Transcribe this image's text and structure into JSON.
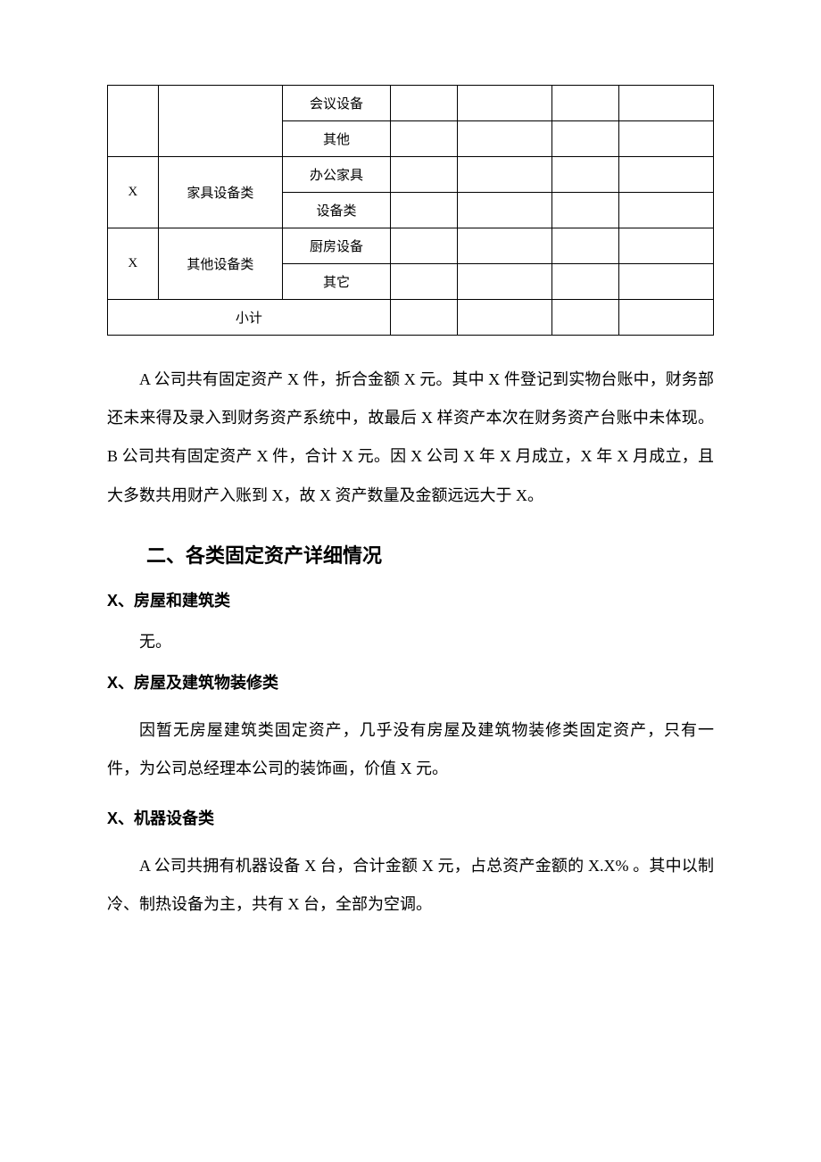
{
  "table": {
    "rows": [
      {
        "c3": "会议设备"
      },
      {
        "c3": "其他"
      },
      {
        "c1": "X",
        "c2": "家具设备类",
        "c3": "办公家具"
      },
      {
        "c3": "设备类"
      },
      {
        "c1": "X",
        "c2": "其他设备类",
        "c3": "厨房设备"
      },
      {
        "c3": "其它"
      }
    ],
    "subtotal": "小计"
  },
  "para1": "A 公司共有固定资产 X 件，折合金额 X 元。其中 X 件登记到实物台账中，财务部还未来得及录入到财务资产系统中，故最后 X 样资产本次在财务资产台账中未体现。B 公司共有固定资产 X 件，合计 X 元。因 X 公司 X 年 X 月成立，X 年 X 月成立，且大多数共用财产入账到 X，故 X 资产数量及金额远远大于 X。",
  "heading2": "二、各类固定资产详细情况",
  "section1_h": "X、房屋和建筑类",
  "section1_p": "无。",
  "section2_h": "X、房屋及建筑物装修类",
  "section2_p": "因暂无房屋建筑类固定资产，几乎没有房屋及建筑物装修类固定资产，只有一件，为公司总经理本公司的装饰画，价值 X 元。",
  "section3_h": "X、机器设备类",
  "section3_p": "A 公司共拥有机器设备 X 台，合计金额 X 元，占总资产金额的 X.X% 。其中以制冷、制热设备为主，共有 X 台，全部为空调。",
  "style": {
    "background_color": "#ffffff",
    "text_color": "#000000",
    "border_color": "#000000",
    "body_fontsize": 18,
    "table_fontsize": 15,
    "heading2_fontsize": 22,
    "heading3_fontsize": 18,
    "line_height": 2.4
  }
}
